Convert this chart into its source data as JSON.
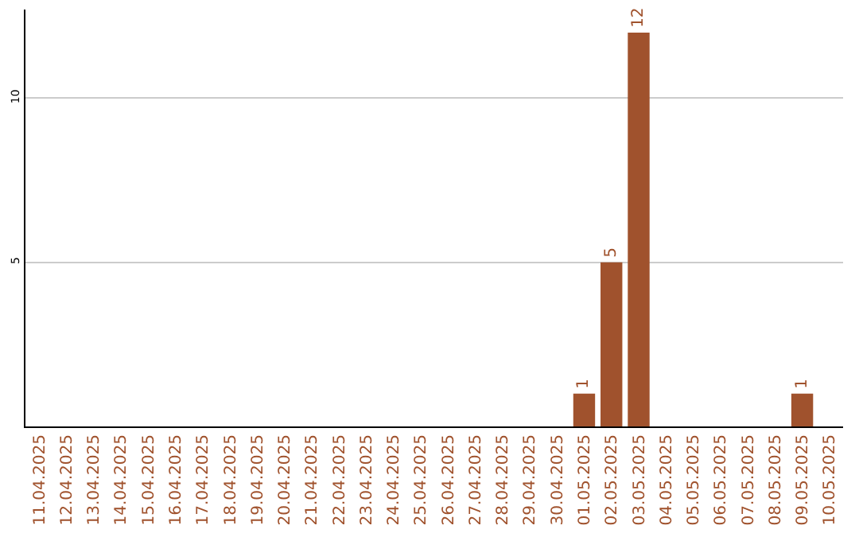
{
  "chart_data": {
    "type": "bar",
    "categories": [
      "11.04.2025",
      "12.04.2025",
      "13.04.2025",
      "14.04.2025",
      "15.04.2025",
      "16.04.2025",
      "17.04.2025",
      "18.04.2025",
      "19.04.2025",
      "20.04.2025",
      "21.04.2025",
      "22.04.2025",
      "23.04.2025",
      "24.04.2025",
      "25.04.2025",
      "26.04.2025",
      "27.04.2025",
      "28.04.2025",
      "29.04.2025",
      "30.04.2025",
      "01.05.2025",
      "02.05.2025",
      "03.05.2025",
      "04.05.2025",
      "05.05.2025",
      "06.05.2025",
      "07.05.2025",
      "08.05.2025",
      "09.05.2025",
      "10.05.2025"
    ],
    "values": [
      0,
      0,
      0,
      0,
      0,
      0,
      0,
      0,
      0,
      0,
      0,
      0,
      0,
      0,
      0,
      0,
      0,
      0,
      0,
      0,
      1,
      5,
      12,
      0,
      0,
      0,
      0,
      0,
      1,
      0
    ],
    "value_labels": [
      null,
      null,
      null,
      null,
      null,
      null,
      null,
      null,
      null,
      null,
      null,
      null,
      null,
      null,
      null,
      null,
      null,
      null,
      null,
      null,
      "1",
      "5",
      "12",
      null,
      null,
      null,
      null,
      null,
      "1",
      null
    ],
    "color": "#a0522d",
    "ylim": [
      0,
      12.7
    ],
    "yticks": [
      5,
      10
    ],
    "grid": "y",
    "legend": false
  }
}
